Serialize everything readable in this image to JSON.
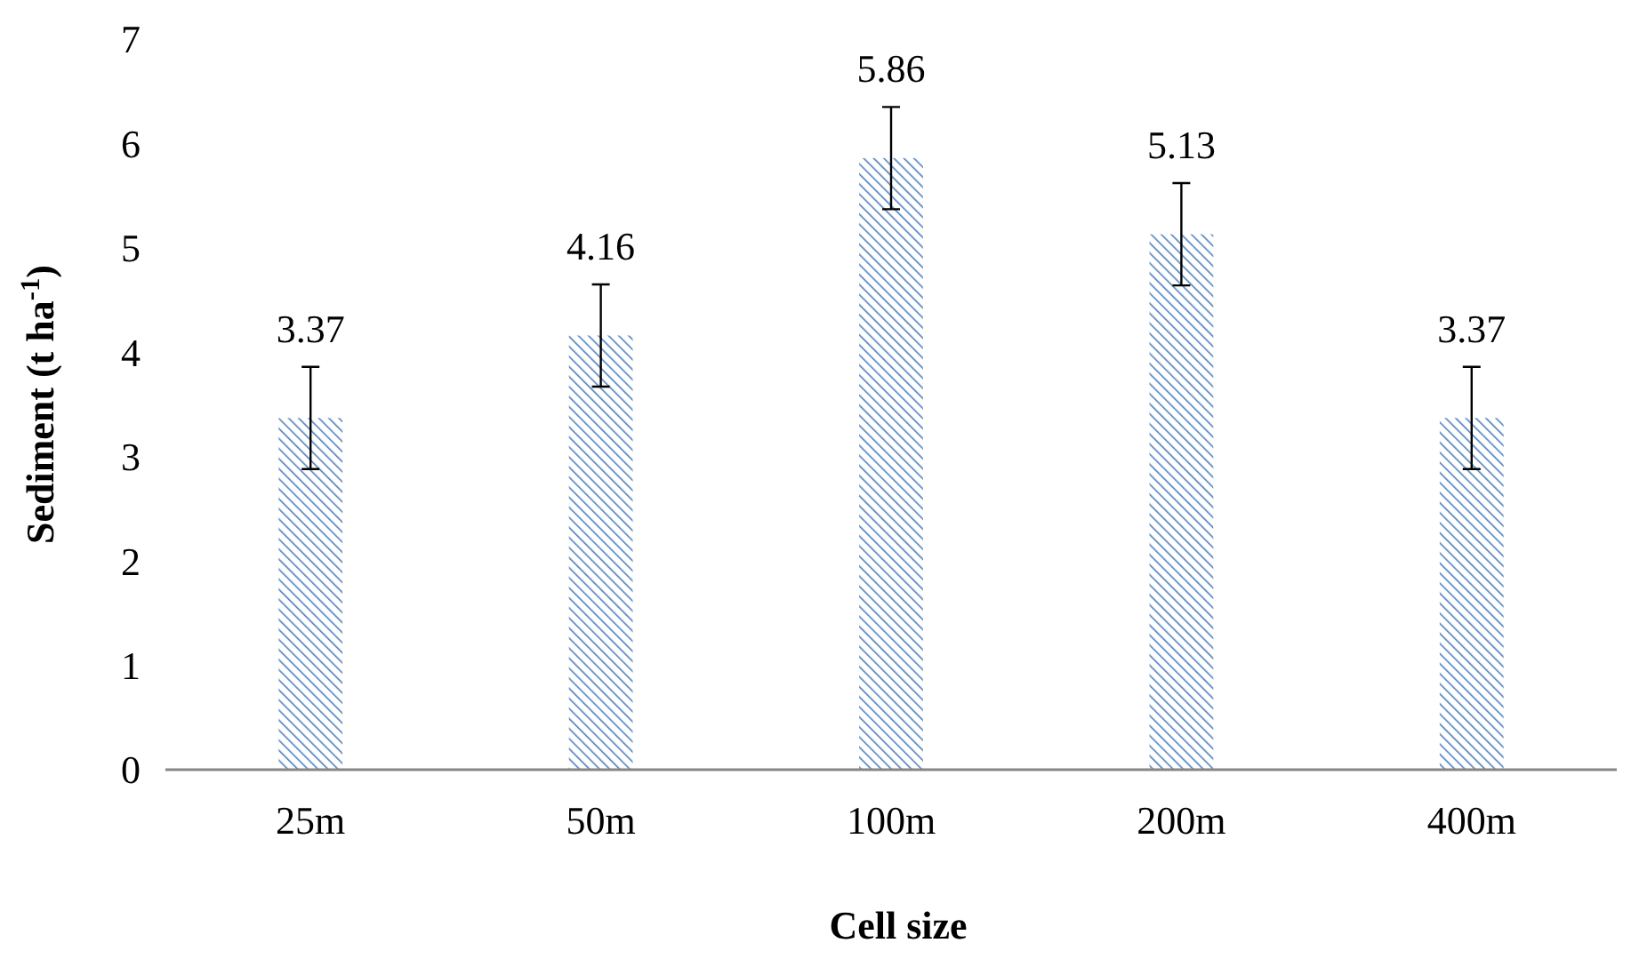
{
  "chart_data": {
    "type": "bar",
    "xlabel": "Cell size",
    "ylabel": "Sediment (t ha$^{-1}$)",
    "categories": [
      "25m",
      "50m",
      "100m",
      "200m",
      "400m"
    ],
    "values": [
      3.37,
      4.16,
      5.86,
      5.13,
      3.37
    ],
    "errors": [
      0.49,
      0.49,
      0.49,
      0.49,
      0.49
    ],
    "color": "#4f81bd",
    "data_labels": true,
    "grid": false,
    "ylim": [
      0,
      7
    ],
    "yticks": [
      0,
      1,
      2,
      3,
      4,
      5,
      6,
      7
    ]
  }
}
